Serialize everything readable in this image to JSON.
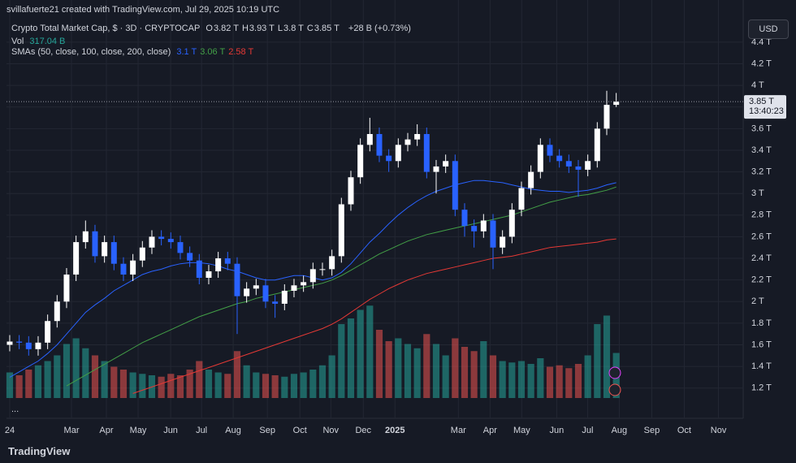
{
  "header": {
    "credit": "svillafuerte21 created with TradingView.com, Jul 29, 2025 10:19 UTC"
  },
  "legend": {
    "symbol": "Crypto Total Market Cap, $ · 3D · CRYPTOCAP",
    "ohlc": [
      {
        "key": "O",
        "value": "3.82 T"
      },
      {
        "key": "H",
        "value": "3.93 T"
      },
      {
        "key": "L",
        "value": "3.8 T"
      },
      {
        "key": "C",
        "value": "3.85 T"
      }
    ],
    "change": "+28 B (+0.73%)",
    "vol_key": "Vol",
    "vol_value": "317.04 B",
    "sma_key": "SMAs (50, close, 100, close, 200, close)"
  },
  "currency": "USD",
  "footer": {
    "brand": "TradingView",
    "more": "..."
  },
  "chart_data": {
    "type": "candlestick",
    "categories": [
      null,
      null,
      null,
      null,
      null,
      null,
      null,
      null,
      null,
      null,
      null,
      null,
      null,
      null,
      null,
      null,
      null,
      null,
      null,
      null,
      null,
      null,
      null,
      null,
      null,
      null,
      null,
      null,
      null,
      null,
      null,
      null,
      null,
      null,
      null,
      null,
      null,
      null,
      null,
      null,
      null,
      null,
      null,
      null,
      null,
      null,
      null,
      null,
      null,
      null,
      null,
      null,
      null,
      null,
      null,
      null,
      null,
      null,
      null,
      null,
      null,
      null,
      null,
      null,
      null
    ],
    "open": [
      1.6,
      1.63,
      1.62,
      1.56,
      1.62,
      1.82,
      2.0,
      2.25,
      2.55,
      2.65,
      2.42,
      2.55,
      2.35,
      2.25,
      2.38,
      2.5,
      2.6,
      2.58,
      2.55,
      2.45,
      2.38,
      2.22,
      2.28,
      2.4,
      2.35,
      2.05,
      2.12,
      2.15,
      2.0,
      1.98,
      2.1,
      2.15,
      2.18,
      2.3,
      2.3,
      2.42,
      2.9,
      3.15,
      3.45,
      3.55,
      3.35,
      3.3,
      3.45,
      3.5,
      3.55,
      3.2,
      3.25,
      3.3,
      2.85,
      2.7,
      2.65,
      2.75,
      2.5,
      2.6,
      2.85,
      3.05,
      3.2,
      3.45,
      3.35,
      3.3,
      3.25,
      3.22,
      3.3,
      3.6,
      3.82
    ],
    "high": [
      1.69,
      1.69,
      1.68,
      1.68,
      1.88,
      2.06,
      2.31,
      2.61,
      2.75,
      2.71,
      2.61,
      2.61,
      2.41,
      2.44,
      2.56,
      2.66,
      2.66,
      2.64,
      2.61,
      2.51,
      2.44,
      2.34,
      2.46,
      2.46,
      2.41,
      2.18,
      2.21,
      2.21,
      2.06,
      2.16,
      2.21,
      2.24,
      2.36,
      2.36,
      2.48,
      2.96,
      3.21,
      3.51,
      3.7,
      3.61,
      3.41,
      3.51,
      3.56,
      3.64,
      3.61,
      3.31,
      3.36,
      3.36,
      2.91,
      2.76,
      2.81,
      2.81,
      2.66,
      2.91,
      3.11,
      3.26,
      3.51,
      3.51,
      3.41,
      3.36,
      3.31,
      3.36,
      3.66,
      3.95,
      3.93
    ],
    "low": [
      1.54,
      1.56,
      1.5,
      1.5,
      1.56,
      1.76,
      1.94,
      2.19,
      2.49,
      2.36,
      2.36,
      2.29,
      2.19,
      2.19,
      2.32,
      2.44,
      2.52,
      2.49,
      2.39,
      2.32,
      2.16,
      2.16,
      2.22,
      2.29,
      1.7,
      1.99,
      2.06,
      1.94,
      1.85,
      1.92,
      2.04,
      2.09,
      2.12,
      2.24,
      2.24,
      2.36,
      2.84,
      3.09,
      3.39,
      3.29,
      3.2,
      3.24,
      3.39,
      3.44,
      3.14,
      3.0,
      3.19,
      2.79,
      2.6,
      2.5,
      2.59,
      2.3,
      2.44,
      2.54,
      2.79,
      2.99,
      3.14,
      3.29,
      3.24,
      3.19,
      2.97,
      3.16,
      3.24,
      3.54,
      3.8
    ],
    "close": [
      1.63,
      1.62,
      1.56,
      1.62,
      1.82,
      2.0,
      2.25,
      2.55,
      2.65,
      2.42,
      2.55,
      2.35,
      2.25,
      2.38,
      2.5,
      2.6,
      2.58,
      2.55,
      2.45,
      2.38,
      2.22,
      2.28,
      2.4,
      2.35,
      2.05,
      2.12,
      2.15,
      2.0,
      1.98,
      2.1,
      2.15,
      2.18,
      2.3,
      2.3,
      2.42,
      2.9,
      3.15,
      3.45,
      3.55,
      3.35,
      3.3,
      3.45,
      3.5,
      3.55,
      3.2,
      3.25,
      3.3,
      2.85,
      2.7,
      2.65,
      2.75,
      2.5,
      2.6,
      2.85,
      3.05,
      3.2,
      3.45,
      3.35,
      3.3,
      3.25,
      3.22,
      3.3,
      3.6,
      3.82,
      3.85
    ],
    "up_color": "#ffffff",
    "down_color": "#2962ff",
    "last_price_label": "3.85 T",
    "countdown": "13:40:23",
    "volume": {
      "axis": "y2",
      "up_color": "#26a69a",
      "down_color": "#ef5350",
      "values": [
        180,
        160,
        200,
        230,
        260,
        300,
        380,
        420,
        350,
        300,
        260,
        220,
        200,
        180,
        170,
        160,
        150,
        170,
        160,
        200,
        260,
        200,
        180,
        170,
        330,
        230,
        180,
        170,
        160,
        150,
        170,
        180,
        200,
        230,
        300,
        520,
        560,
        620,
        650,
        480,
        400,
        420,
        380,
        350,
        450,
        380,
        300,
        420,
        360,
        330,
        400,
        300,
        260,
        250,
        260,
        240,
        280,
        220,
        230,
        210,
        240,
        300,
        520,
        580,
        317
      ]
    },
    "y2lim": [
      0,
      2800
    ],
    "sma": [
      {
        "color": "#2962ff",
        "last_label": "3.1 T",
        "values": [
          1.3,
          1.35,
          1.4,
          1.45,
          1.52,
          1.6,
          1.7,
          1.8,
          1.9,
          1.97,
          2.03,
          2.1,
          2.15,
          2.2,
          2.25,
          2.28,
          2.3,
          2.33,
          2.35,
          2.36,
          2.36,
          2.35,
          2.33,
          2.3,
          2.28,
          2.25,
          2.22,
          2.2,
          2.2,
          2.22,
          2.24,
          2.24,
          2.22,
          2.2,
          2.22,
          2.27,
          2.35,
          2.45,
          2.55,
          2.63,
          2.72,
          2.8,
          2.87,
          2.93,
          2.98,
          3.02,
          3.05,
          3.08,
          3.1,
          3.12,
          3.12,
          3.11,
          3.1,
          3.08,
          3.06,
          3.04,
          3.03,
          3.02,
          3.02,
          3.01,
          3.02,
          3.03,
          3.05,
          3.08,
          3.1
        ]
      },
      {
        "color": "#43a047",
        "last_label": "3.06 T",
        "values": [
          null,
          null,
          null,
          null,
          null,
          null,
          1.22,
          1.27,
          1.32,
          1.37,
          1.42,
          1.47,
          1.52,
          1.57,
          1.62,
          1.66,
          1.7,
          1.74,
          1.78,
          1.82,
          1.86,
          1.89,
          1.92,
          1.95,
          1.98,
          2.0,
          2.03,
          2.05,
          2.07,
          2.09,
          2.11,
          2.13,
          2.15,
          2.17,
          2.2,
          2.24,
          2.29,
          2.34,
          2.39,
          2.44,
          2.48,
          2.52,
          2.56,
          2.59,
          2.62,
          2.64,
          2.66,
          2.68,
          2.7,
          2.72,
          2.74,
          2.76,
          2.78,
          2.8,
          2.83,
          2.86,
          2.89,
          2.92,
          2.94,
          2.96,
          2.98,
          2.99,
          3.01,
          3.03,
          3.06
        ]
      },
      {
        "color": "#e53935",
        "last_label": "2.58 T",
        "values": [
          null,
          null,
          null,
          null,
          null,
          null,
          null,
          null,
          null,
          null,
          null,
          null,
          null,
          1.15,
          1.18,
          1.21,
          1.24,
          1.27,
          1.3,
          1.33,
          1.36,
          1.39,
          1.42,
          1.45,
          1.48,
          1.51,
          1.54,
          1.57,
          1.6,
          1.63,
          1.66,
          1.69,
          1.72,
          1.75,
          1.79,
          1.84,
          1.9,
          1.96,
          2.02,
          2.07,
          2.12,
          2.16,
          2.2,
          2.23,
          2.26,
          2.28,
          2.3,
          2.32,
          2.34,
          2.36,
          2.38,
          2.4,
          2.41,
          2.42,
          2.44,
          2.46,
          2.48,
          2.5,
          2.51,
          2.52,
          2.53,
          2.54,
          2.55,
          2.57,
          2.58
        ]
      }
    ],
    "xlim": [
      -0.34,
      77.4
    ],
    "xticks": [
      {
        "value": 0,
        "label": "24"
      },
      {
        "value": 6.52,
        "label": "Mar"
      },
      {
        "value": 10.2,
        "label": "Apr"
      },
      {
        "value": 13.55,
        "label": "May"
      },
      {
        "value": 16.98,
        "label": "Jun"
      },
      {
        "value": 20.24,
        "label": "Jul"
      },
      {
        "value": 23.58,
        "label": "Aug"
      },
      {
        "value": 27.19,
        "label": "Sep"
      },
      {
        "value": 30.62,
        "label": "Oct"
      },
      {
        "value": 33.88,
        "label": "Nov"
      },
      {
        "value": 37.31,
        "label": "Dec"
      },
      {
        "value": 40.65,
        "label": "2025"
      },
      {
        "value": 47.34,
        "label": "Mar"
      },
      {
        "value": 50.69,
        "label": "Apr"
      },
      {
        "value": 54.03,
        "label": "May"
      },
      {
        "value": 57.72,
        "label": "Jun"
      },
      {
        "value": 60.98,
        "label": "Jul"
      },
      {
        "value": 64.32,
        "label": "Aug"
      },
      {
        "value": 67.75,
        "label": "Sep"
      },
      {
        "value": 71.18,
        "label": "Oct"
      },
      {
        "value": 74.79,
        "label": "Nov"
      }
    ],
    "ylim": [
      0.92,
      4.79
    ],
    "yticks": [
      {
        "value": 1.2,
        "label": "1.2 T"
      },
      {
        "value": 1.4,
        "label": "1.4 T"
      },
      {
        "value": 1.6,
        "label": "1.6 T"
      },
      {
        "value": 1.8,
        "label": "1.8 T"
      },
      {
        "value": 2,
        "label": "2 T"
      },
      {
        "value": 2.2,
        "label": "2.2 T"
      },
      {
        "value": 2.4,
        "label": "2.4 T"
      },
      {
        "value": 2.6,
        "label": "2.6 T"
      },
      {
        "value": 2.8,
        "label": "2.8 T"
      },
      {
        "value": 3,
        "label": "3 T"
      },
      {
        "value": 3.2,
        "label": "3.2 T"
      },
      {
        "value": 3.4,
        "label": "3.4 T"
      },
      {
        "value": 3.6,
        "label": "3.6 T"
      },
      {
        "value": 3.8,
        "label": "3.8 T"
      },
      {
        "value": 4,
        "label": "4 T"
      },
      {
        "value": 4.2,
        "label": "4.2 T"
      },
      {
        "value": 4.4,
        "label": "4.4 T"
      }
    ],
    "grid": true
  }
}
